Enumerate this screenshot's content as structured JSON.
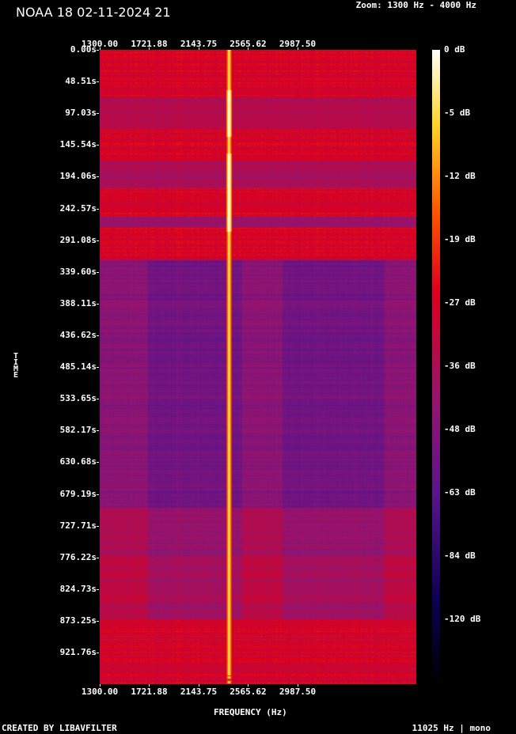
{
  "title": "NOAA 18 02-11-2024 21",
  "zoom_text": "Zoom: 1300 Hz - 4000 Hz",
  "footer_left": "CREATED BY LIBAVFILTER",
  "footer_right": "11025 Hz | mono",
  "chart_data": {
    "type": "heatmap",
    "xlabel": "FREQUENCY (Hz)",
    "ylabel": "TIME",
    "x_ticks": [
      "1300.00",
      "1721.88",
      "2143.75",
      "2565.62",
      "2987.50"
    ],
    "x_tick_values": [
      1300.0,
      1721.88,
      2143.75,
      2565.62,
      2987.5
    ],
    "xlim": [
      1300,
      4000
    ],
    "y_ticks": [
      "0.00s",
      "48.51s",
      "97.03s",
      "145.54s",
      "194.06s",
      "242.57s",
      "291.08s",
      "339.60s",
      "388.11s",
      "436.62s",
      "485.14s",
      "533.65s",
      "582.17s",
      "630.68s",
      "679.19s",
      "727.71s",
      "776.22s",
      "824.73s",
      "873.25s",
      "921.76s"
    ],
    "y_tick_values": [
      0.0,
      48.51,
      97.03,
      145.54,
      194.06,
      242.57,
      291.08,
      339.6,
      388.11,
      436.62,
      485.14,
      533.65,
      582.17,
      630.68,
      679.19,
      727.71,
      776.22,
      824.73,
      873.25,
      921.76
    ],
    "ylim": [
      0,
      970
    ],
    "colorbar_labels": [
      "0 dB",
      "-5 dB",
      "-12 dB",
      "-19 dB",
      "-27 dB",
      "-36 dB",
      "-48 dB",
      "-63 dB",
      "-84 dB",
      "-120 dB"
    ],
    "colorbar_values": [
      0,
      -5,
      -12,
      -19,
      -27,
      -36,
      -48,
      -63,
      -84,
      -120
    ],
    "carrier_frequency_hz": 2400,
    "colors": {
      "background": "#000000",
      "text": "#ffffff"
    }
  }
}
